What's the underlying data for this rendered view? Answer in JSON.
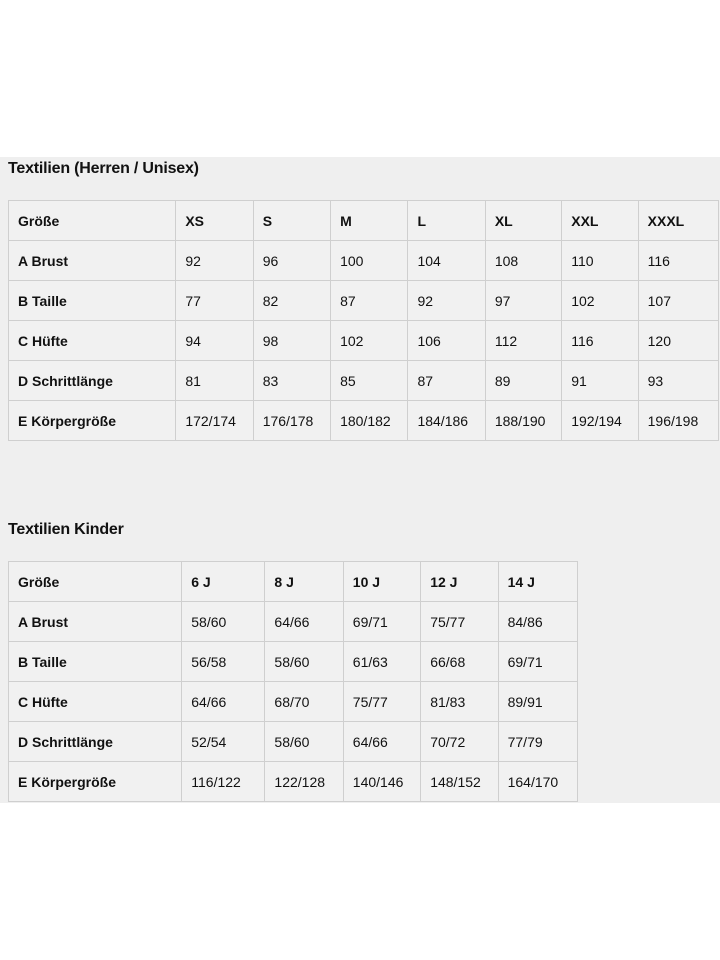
{
  "adult": {
    "title": "Textilien (Herren / Unisex)",
    "header": [
      "Größe",
      "XS",
      "S",
      "M",
      "L",
      "XL",
      "XXL",
      "XXXL"
    ],
    "rows": [
      [
        "A Brust",
        "92",
        "96",
        "100",
        "104",
        "108",
        "110",
        "116"
      ],
      [
        "B Taille",
        "77",
        "82",
        "87",
        "92",
        "97",
        "102",
        "107"
      ],
      [
        "C Hüfte",
        "94",
        "98",
        "102",
        "106",
        "112",
        "116",
        "120"
      ],
      [
        "D Schrittlänge",
        "81",
        "83",
        "85",
        "87",
        "89",
        "91",
        "93"
      ],
      [
        "E Körpergröße",
        "172/174",
        "176/178",
        "180/182",
        "184/186",
        "188/190",
        "192/194",
        "196/198"
      ]
    ]
  },
  "kids": {
    "title": "Textilien Kinder",
    "header": [
      "Größe",
      "6 J",
      "8 J",
      "10 J",
      "12 J",
      "14 J"
    ],
    "rows": [
      [
        "A Brust",
        "58/60",
        "64/66",
        "69/71",
        "75/77",
        "84/86"
      ],
      [
        "B Taille",
        "56/58",
        "58/60",
        "61/63",
        "66/68",
        "69/71"
      ],
      [
        "C Hüfte",
        "64/66",
        "68/70",
        "75/77",
        "81/83",
        "89/91"
      ],
      [
        "D Schrittlänge",
        "52/54",
        "58/60",
        "64/66",
        "70/72",
        "77/79"
      ],
      [
        "E Körpergröße",
        "116/122",
        "122/128",
        "140/146",
        "148/152",
        "164/170"
      ]
    ]
  }
}
